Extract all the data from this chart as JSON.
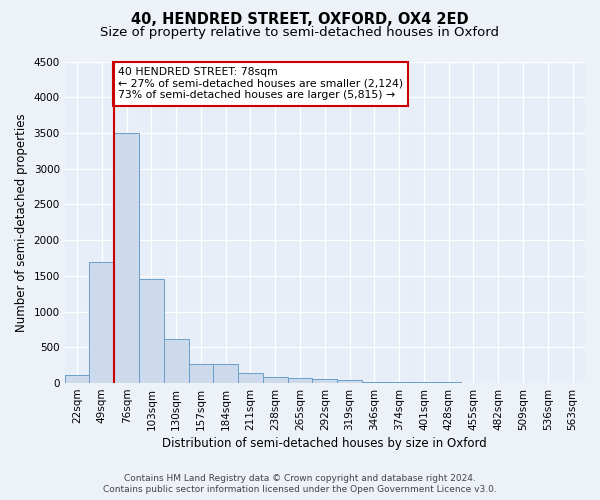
{
  "title": "40, HENDRED STREET, OXFORD, OX4 2ED",
  "subtitle": "Size of property relative to semi-detached houses in Oxford",
  "xlabel": "Distribution of semi-detached houses by size in Oxford",
  "ylabel": "Number of semi-detached properties",
  "bar_labels": [
    "22sqm",
    "49sqm",
    "76sqm",
    "103sqm",
    "130sqm",
    "157sqm",
    "184sqm",
    "211sqm",
    "238sqm",
    "265sqm",
    "292sqm",
    "319sqm",
    "346sqm",
    "374sqm",
    "401sqm",
    "428sqm",
    "455sqm",
    "482sqm",
    "509sqm",
    "536sqm",
    "563sqm"
  ],
  "bar_values": [
    110,
    1700,
    3500,
    1450,
    620,
    270,
    260,
    140,
    85,
    75,
    55,
    45,
    20,
    15,
    10,
    8,
    5,
    4,
    3,
    2,
    2
  ],
  "bar_color": "#cddaeb",
  "bar_edge_color": "#6a9fca",
  "property_label": "40 HENDRED STREET: 78sqm",
  "annotation_line1": "← 27% of semi-detached houses are smaller (2,124)",
  "annotation_line2": "73% of semi-detached houses are larger (5,815) →",
  "red_line_bin_index": 1.5,
  "ylim": [
    0,
    4500
  ],
  "yticks": [
    0,
    500,
    1000,
    1500,
    2000,
    2500,
    3000,
    3500,
    4000,
    4500
  ],
  "background_color": "#edf1f8",
  "plot_bg_color": "#e8eef7",
  "annotation_box_facecolor": "#ffffff",
  "red_line_color": "#cc0000",
  "footer_line1": "Contains HM Land Registry data © Crown copyright and database right 2024.",
  "footer_line2": "Contains public sector information licensed under the Open Government Licence v3.0.",
  "title_fontsize": 10.5,
  "subtitle_fontsize": 9.5,
  "tick_fontsize": 7.5,
  "ylabel_fontsize": 8.5,
  "xlabel_fontsize": 8.5,
  "footer_fontsize": 6.5,
  "annotation_fontsize": 7.8
}
